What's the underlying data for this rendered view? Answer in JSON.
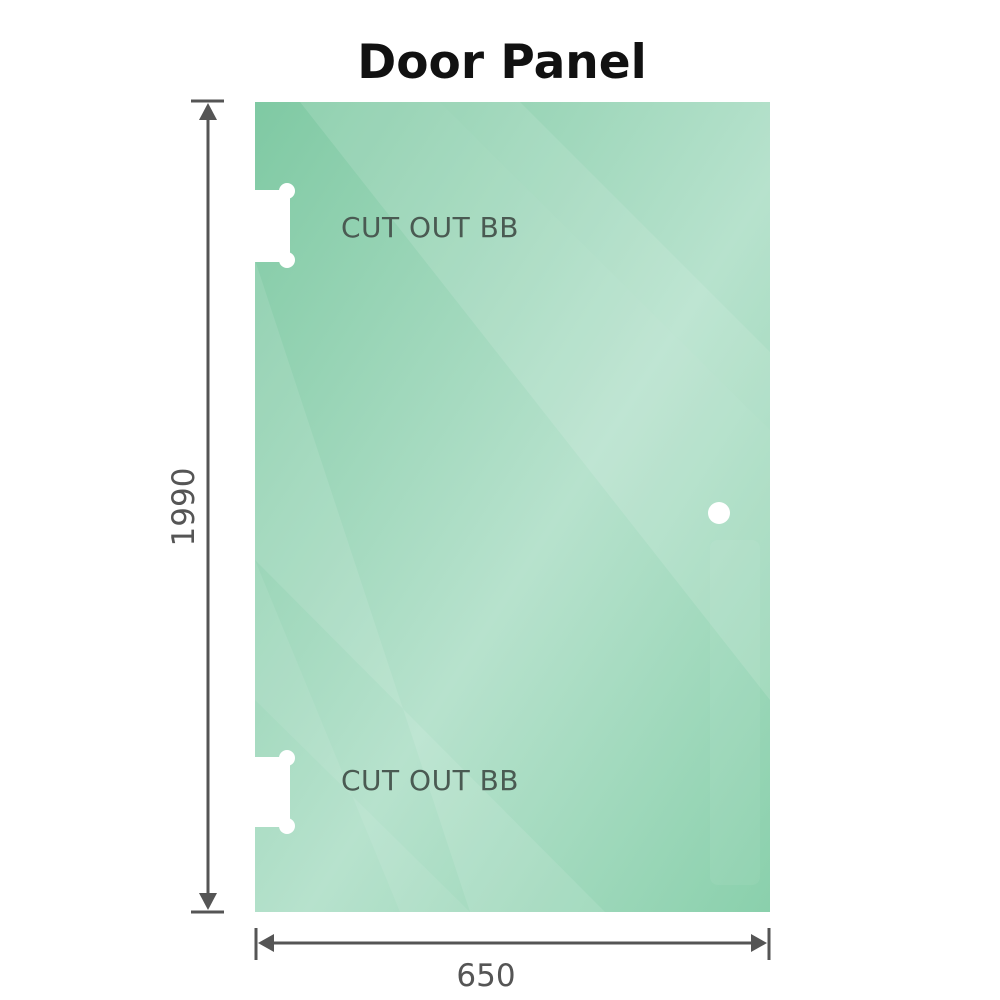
{
  "title": "Door Panel",
  "panel": {
    "cutout_labels": [
      "CUT OUT BB",
      "CUT OUT BB"
    ],
    "glass_color": "#86cda9",
    "glass_highlight": "#bfe5d2"
  },
  "dimensions": {
    "height": "1990",
    "width": "650",
    "line_color": "#555555"
  }
}
